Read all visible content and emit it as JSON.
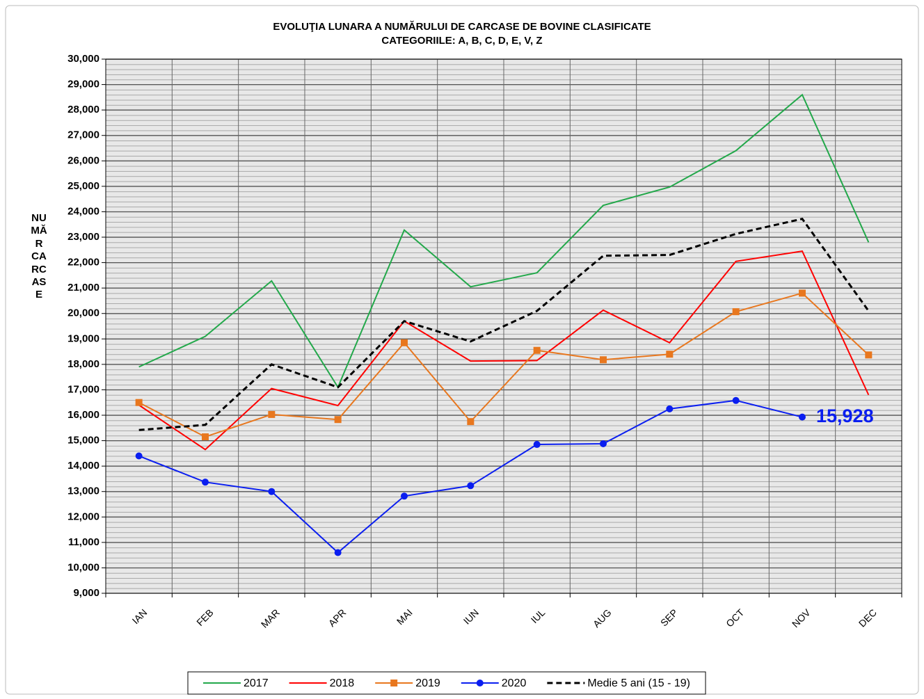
{
  "chart_data": {
    "type": "line",
    "title": "EVOLUŢIA LUNARA  A NUMĂRULUI DE CARCASE DE BOVINE  CLASIFICATE",
    "subtitle": "CATEGORIILE: A, B, C, D, E, V, Z",
    "y_label": "NUMĂR  CARCASE",
    "categories": [
      "IAN",
      "FEB",
      "MAR",
      "APR",
      "MAI",
      "IUN",
      "IUL",
      "AUG",
      "SEP",
      "OCT",
      "NOV",
      "DEC"
    ],
    "series": [
      {
        "name": "2017",
        "color": "#22a84a",
        "marker": null,
        "dash": false,
        "values": [
          17900,
          19100,
          21280,
          17100,
          23280,
          21050,
          21600,
          24250,
          24970,
          26400,
          28600,
          22800
        ]
      },
      {
        "name": "2018",
        "color": "#ff0000",
        "marker": null,
        "dash": false,
        "values": [
          16400,
          14650,
          17050,
          16380,
          19700,
          18130,
          18150,
          20130,
          18850,
          22050,
          22450,
          16800
        ]
      },
      {
        "name": "2019",
        "color": "#e8771e",
        "marker": "square",
        "dash": false,
        "values": [
          16500,
          15150,
          16030,
          15830,
          18850,
          15750,
          18550,
          18180,
          18400,
          20070,
          20800,
          18370
        ]
      },
      {
        "name": "2020",
        "color": "#0a1ef0",
        "marker": "circle",
        "dash": false,
        "values": [
          14400,
          13370,
          13000,
          10600,
          12820,
          13230,
          14850,
          14880,
          16250,
          16580,
          15928,
          null
        ],
        "value_labels": [
          null,
          null,
          null,
          null,
          null,
          null,
          null,
          null,
          null,
          null,
          "15,928",
          null
        ]
      },
      {
        "name": "Medie 5 ani (15 - 19)",
        "color": "#000000",
        "marker": null,
        "dash": true,
        "values": [
          15420,
          15620,
          18000,
          17100,
          19700,
          18900,
          20100,
          22270,
          22300,
          23130,
          23720,
          20100
        ]
      }
    ],
    "ylim": [
      9000,
      30000
    ],
    "yticks": [
      {
        "value": 9000,
        "label": "9,000"
      },
      {
        "value": 10000,
        "label": "10,000"
      },
      {
        "value": 11000,
        "label": "11,000"
      },
      {
        "value": 12000,
        "label": "12,000"
      },
      {
        "value": 13000,
        "label": "13,000"
      },
      {
        "value": 14000,
        "label": "14,000"
      },
      {
        "value": 15000,
        "label": "15,000"
      },
      {
        "value": 16000,
        "label": "16,000"
      },
      {
        "value": 17000,
        "label": "17,000"
      },
      {
        "value": 18000,
        "label": "18,000"
      },
      {
        "value": 19000,
        "label": "19,000"
      },
      {
        "value": 20000,
        "label": "20,000"
      },
      {
        "value": 21000,
        "label": "21,000"
      },
      {
        "value": 22000,
        "label": "22,000"
      },
      {
        "value": 23000,
        "label": "23,000"
      },
      {
        "value": 24000,
        "label": "24,000"
      },
      {
        "value": 25000,
        "label": "25,000"
      },
      {
        "value": 26000,
        "label": "26,000"
      },
      {
        "value": 27000,
        "label": "27,000"
      },
      {
        "value": 28000,
        "label": "28,000"
      },
      {
        "value": 29000,
        "label": "29,000"
      },
      {
        "value": 30000,
        "label": "30,000"
      }
    ],
    "grid": true,
    "legend": "bottom"
  }
}
